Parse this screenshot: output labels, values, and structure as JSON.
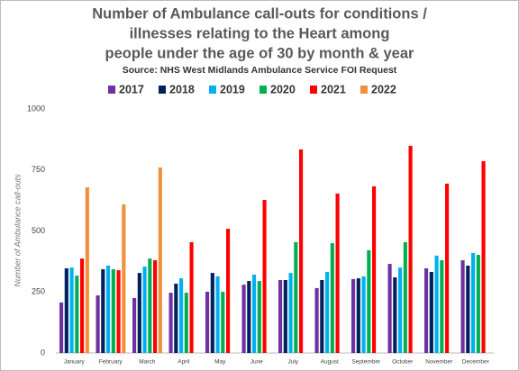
{
  "chart_data": {
    "type": "bar",
    "title": [
      "Number of Ambulance call-outs for conditions /",
      "illnesses relating to the Heart among",
      "people under the age of 30 by month & year"
    ],
    "subtitle": "Source: NHS West Midlands Ambulance Service FOI Request",
    "y_label": "Number of Ambulance call-outs",
    "categories": [
      "January",
      "February",
      "March",
      "April",
      "May",
      "June",
      "July",
      "August",
      "September",
      "October",
      "November",
      "December"
    ],
    "series": [
      {
        "name": "2017",
        "color": "#7030a0",
        "values": [
          207,
          236,
          225,
          247,
          251,
          280,
          299,
          266,
          303,
          365,
          347,
          380
        ]
      },
      {
        "name": "2018",
        "color": "#002060",
        "values": [
          347,
          343,
          328,
          284,
          328,
          295,
          299,
          299,
          306,
          310,
          332,
          358
        ]
      },
      {
        "name": "2019",
        "color": "#00b0f0",
        "values": [
          350,
          358,
          354,
          306,
          314,
          321,
          328,
          332,
          314,
          350,
          399,
          410
        ]
      },
      {
        "name": "2020",
        "color": "#00b050",
        "values": [
          317,
          343,
          387,
          247,
          251,
          295,
          454,
          450,
          421,
          454,
          380,
          402
        ]
      },
      {
        "name": "2021",
        "color": "#ff0000",
        "values": [
          387,
          339,
          380,
          454,
          509,
          627,
          834,
          653,
          683,
          849,
          694,
          786
        ]
      },
      {
        "name": "2022",
        "color": "#f0903a",
        "values": [
          679,
          609,
          760,
          null,
          null,
          null,
          null,
          null,
          null,
          null,
          null,
          null
        ]
      }
    ],
    "ylim": [
      0,
      1000
    ],
    "yticks": [
      0,
      250,
      500,
      750,
      1000
    ],
    "grid": false
  }
}
